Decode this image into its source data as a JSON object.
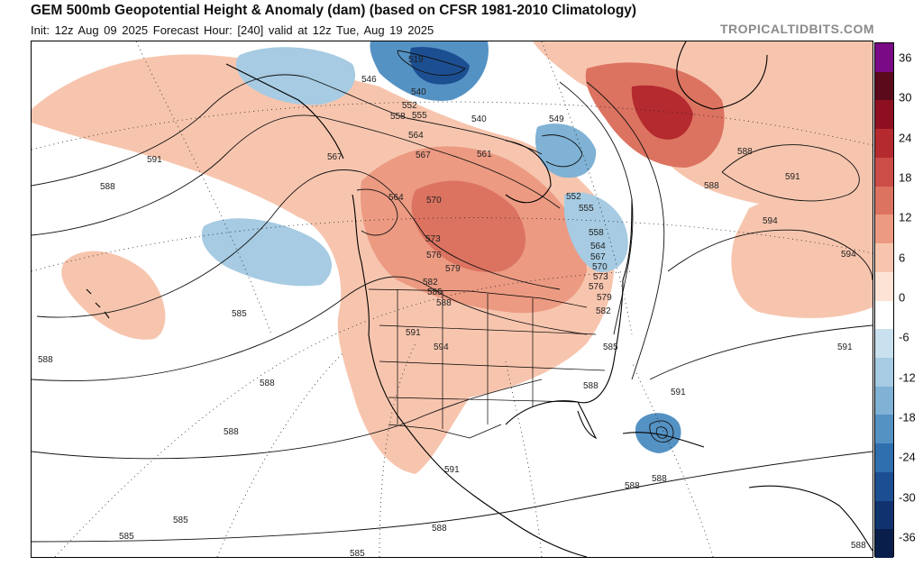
{
  "header": {
    "title": "GEM 500mb Geopotential Height & Anomaly (dam) (based on CFSR 1981-2010 Climatology)",
    "subtitle": "Init: 12z Aug 09 2025   Forecast Hour: [240]   valid at 12z Tue, Aug 19 2025",
    "source": "TROPICALTIDBITS.COM"
  },
  "colorbar": {
    "ticks": [
      "36",
      "30",
      "24",
      "18",
      "12",
      "6",
      "0",
      "-6",
      "-12",
      "-18",
      "-24",
      "-30",
      "-36"
    ],
    "colors": [
      "#7a0a86",
      "#5b0a1c",
      "#8e1020",
      "#b52a2f",
      "#cc4d48",
      "#dc7360",
      "#ec9a82",
      "#f7c5ae",
      "#fde3d6",
      "#ffffff",
      "#c9e1ee",
      "#a6cbe2",
      "#7fb2d5",
      "#5592c4",
      "#2f6fae",
      "#1c4f92",
      "#10336f",
      "#0a1e4c"
    ]
  },
  "contour_labels": [
    "519",
    "546",
    "540",
    "552",
    "558",
    "555",
    "540",
    "549",
    "564",
    "567",
    "567",
    "561",
    "591",
    "588",
    "564",
    "570",
    "573",
    "576",
    "579",
    "582",
    "585",
    "588",
    "591",
    "594",
    "588",
    "552",
    "555",
    "558",
    "564",
    "567",
    "570",
    "573",
    "576",
    "579",
    "582",
    "585",
    "588",
    "591",
    "588",
    "594",
    "594",
    "588",
    "591",
    "585",
    "588",
    "588",
    "591",
    "588",
    "585",
    "585",
    "588",
    "585",
    "588",
    "591",
    "588"
  ]
}
